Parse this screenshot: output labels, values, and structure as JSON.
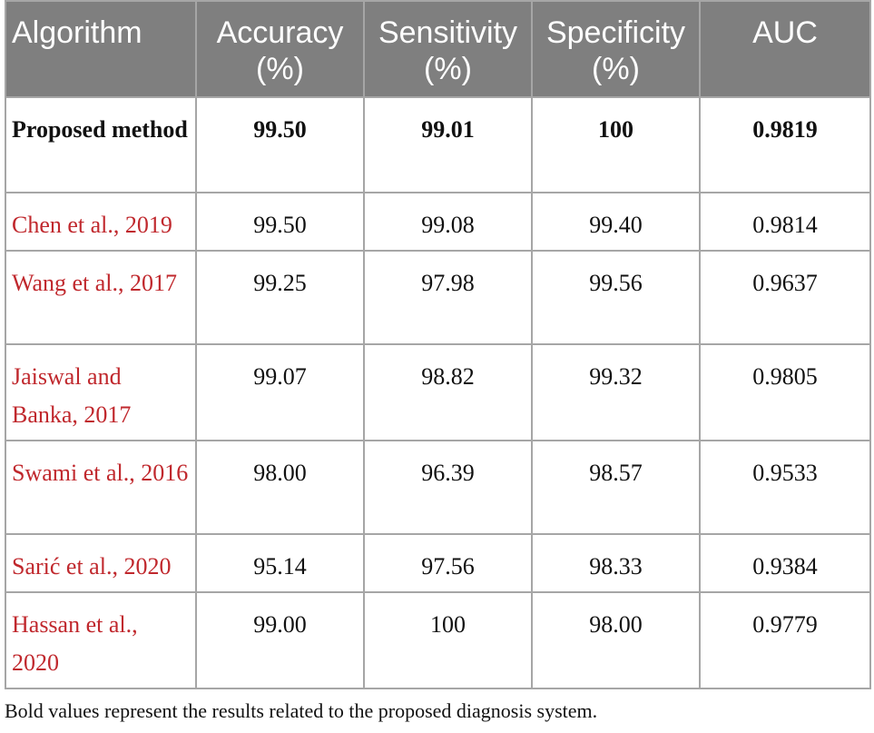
{
  "table": {
    "header": [
      "Algorithm",
      "Accuracy (%)",
      "Sensitivity (%)",
      "Specificity (%)",
      "AUC"
    ],
    "rows": [
      [
        "Proposed method",
        "99.50",
        "99.01",
        "100",
        "0.9819"
      ],
      [
        "Chen et al., 2019",
        "99.50",
        "99.08",
        "99.40",
        "0.9814"
      ],
      [
        "Wang et al., 2017",
        "99.25",
        "97.98",
        "99.56",
        "0.9637"
      ],
      [
        "Jaiswal and Banka, 2017",
        "99.07",
        "98.82",
        "99.32",
        "0.9805"
      ],
      [
        "Swami et al., 2016",
        "98.00",
        "96.39",
        "98.57",
        "0.9533"
      ],
      [
        "Sarić et al., 2020",
        "95.14",
        "97.56",
        "98.33",
        "0.9384"
      ],
      [
        "Hassan et al., 2020",
        "99.00",
        "100",
        "98.00",
        "0.9779"
      ]
    ]
  },
  "note": "Bold values represent the results related to the proposed diagnosis system."
}
